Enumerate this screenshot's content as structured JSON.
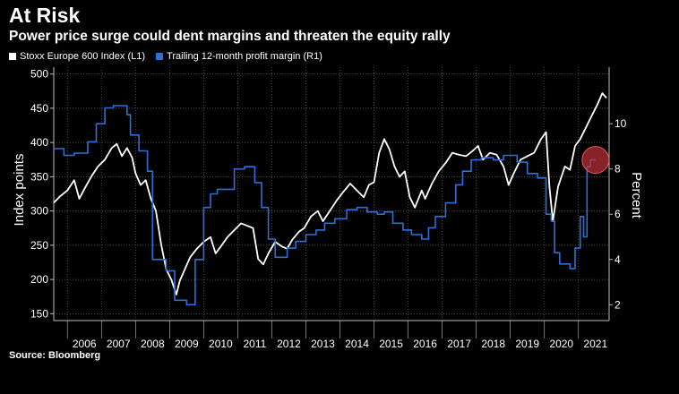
{
  "header": {
    "title": "At Risk",
    "subtitle": "Power price surge could dent margins and threaten the equity rally"
  },
  "footer": {
    "source": "Source: Bloomberg"
  },
  "colors": {
    "index_line": "#ffffff",
    "margin_line": "#2f6fd8",
    "highlight": "#c0303a",
    "grid": "#666666"
  },
  "chart_data": {
    "type": "line",
    "title": "At Risk",
    "subtitle": "Power price surge could dent margins and threaten the equity rally",
    "x_tick_labels": [
      "2006",
      "2007",
      "2008",
      "2009",
      "2010",
      "2011",
      "2012",
      "2013",
      "2014",
      "2015",
      "2016",
      "2017",
      "2018",
      "2019",
      "2020",
      "2021"
    ],
    "x_range": [
      2005.6,
      2021.9
    ],
    "left_axis": {
      "label": "Index points",
      "range": [
        140,
        510
      ],
      "ticks": [
        150,
        200,
        250,
        300,
        350,
        400,
        450,
        500
      ]
    },
    "right_axis": {
      "label": "Percent",
      "range": [
        1.3,
        12.5
      ],
      "ticks": [
        2,
        4,
        6,
        8,
        10
      ]
    },
    "grid": true,
    "legend_position": "top-left",
    "series": [
      {
        "name": "Stoxx Europe 600 Index (L1)",
        "axis": "left",
        "points": [
          [
            2005.6,
            312
          ],
          [
            2005.8,
            322
          ],
          [
            2006.0,
            330
          ],
          [
            2006.2,
            345
          ],
          [
            2006.35,
            318
          ],
          [
            2006.5,
            332
          ],
          [
            2006.7,
            350
          ],
          [
            2006.9,
            365
          ],
          [
            2007.1,
            375
          ],
          [
            2007.3,
            392
          ],
          [
            2007.45,
            398
          ],
          [
            2007.6,
            380
          ],
          [
            2007.75,
            392
          ],
          [
            2007.9,
            378
          ],
          [
            2008.0,
            355
          ],
          [
            2008.15,
            338
          ],
          [
            2008.3,
            345
          ],
          [
            2008.45,
            318
          ],
          [
            2008.6,
            300
          ],
          [
            2008.75,
            252
          ],
          [
            2008.9,
            215
          ],
          [
            2009.05,
            200
          ],
          [
            2009.2,
            178
          ],
          [
            2009.3,
            198
          ],
          [
            2009.45,
            215
          ],
          [
            2009.6,
            232
          ],
          [
            2009.8,
            245
          ],
          [
            2010.0,
            255
          ],
          [
            2010.2,
            262
          ],
          [
            2010.35,
            238
          ],
          [
            2010.5,
            248
          ],
          [
            2010.7,
            262
          ],
          [
            2010.9,
            272
          ],
          [
            2011.1,
            282
          ],
          [
            2011.3,
            278
          ],
          [
            2011.45,
            275
          ],
          [
            2011.6,
            230
          ],
          [
            2011.75,
            222
          ],
          [
            2011.9,
            238
          ],
          [
            2012.1,
            255
          ],
          [
            2012.3,
            248
          ],
          [
            2012.45,
            245
          ],
          [
            2012.6,
            258
          ],
          [
            2012.8,
            270
          ],
          [
            2012.95,
            275
          ],
          [
            2013.15,
            292
          ],
          [
            2013.35,
            300
          ],
          [
            2013.5,
            285
          ],
          [
            2013.7,
            300
          ],
          [
            2013.9,
            315
          ],
          [
            2014.1,
            328
          ],
          [
            2014.3,
            340
          ],
          [
            2014.5,
            330
          ],
          [
            2014.7,
            320
          ],
          [
            2014.85,
            338
          ],
          [
            2015.0,
            342
          ],
          [
            2015.15,
            385
          ],
          [
            2015.3,
            405
          ],
          [
            2015.45,
            390
          ],
          [
            2015.6,
            365
          ],
          [
            2015.75,
            350
          ],
          [
            2015.9,
            358
          ],
          [
            2016.05,
            320
          ],
          [
            2016.2,
            305
          ],
          [
            2016.4,
            330
          ],
          [
            2016.5,
            318
          ],
          [
            2016.7,
            340
          ],
          [
            2016.9,
            358
          ],
          [
            2017.1,
            370
          ],
          [
            2017.3,
            385
          ],
          [
            2017.5,
            382
          ],
          [
            2017.7,
            380
          ],
          [
            2017.9,
            388
          ],
          [
            2018.05,
            395
          ],
          [
            2018.2,
            375
          ],
          [
            2018.4,
            385
          ],
          [
            2018.6,
            382
          ],
          [
            2018.8,
            365
          ],
          [
            2018.95,
            338
          ],
          [
            2019.1,
            355
          ],
          [
            2019.3,
            375
          ],
          [
            2019.5,
            380
          ],
          [
            2019.7,
            385
          ],
          [
            2019.9,
            405
          ],
          [
            2020.05,
            415
          ],
          [
            2020.15,
            335
          ],
          [
            2020.25,
            285
          ],
          [
            2020.4,
            335
          ],
          [
            2020.6,
            365
          ],
          [
            2020.75,
            360
          ],
          [
            2020.9,
            395
          ],
          [
            2021.05,
            405
          ],
          [
            2021.2,
            420
          ],
          [
            2021.4,
            440
          ],
          [
            2021.55,
            455
          ],
          [
            2021.7,
            472
          ],
          [
            2021.82,
            465
          ]
        ]
      },
      {
        "name": "Trailing 12-month profit margin (R1)",
        "axis": "right",
        "points": [
          [
            2005.6,
            8.9
          ],
          [
            2005.9,
            8.9
          ],
          [
            2005.9,
            8.6
          ],
          [
            2006.2,
            8.6
          ],
          [
            2006.2,
            8.7
          ],
          [
            2006.6,
            8.7
          ],
          [
            2006.6,
            9.2
          ],
          [
            2006.85,
            9.2
          ],
          [
            2006.85,
            10.0
          ],
          [
            2007.1,
            10.0
          ],
          [
            2007.1,
            10.7
          ],
          [
            2007.35,
            10.7
          ],
          [
            2007.35,
            10.8
          ],
          [
            2007.75,
            10.8
          ],
          [
            2007.75,
            10.4
          ],
          [
            2007.85,
            10.4
          ],
          [
            2007.85,
            9.5
          ],
          [
            2008.1,
            9.5
          ],
          [
            2008.1,
            8.8
          ],
          [
            2008.35,
            8.8
          ],
          [
            2008.35,
            7.9
          ],
          [
            2008.5,
            7.9
          ],
          [
            2008.5,
            4.0
          ],
          [
            2008.9,
            4.0
          ],
          [
            2008.9,
            3.5
          ],
          [
            2009.15,
            3.5
          ],
          [
            2009.15,
            2.2
          ],
          [
            2009.5,
            2.2
          ],
          [
            2009.5,
            2.0
          ],
          [
            2009.75,
            2.0
          ],
          [
            2009.75,
            4.0
          ],
          [
            2010.0,
            4.0
          ],
          [
            2010.0,
            6.3
          ],
          [
            2010.2,
            6.3
          ],
          [
            2010.2,
            6.9
          ],
          [
            2010.4,
            6.9
          ],
          [
            2010.4,
            7.1
          ],
          [
            2010.9,
            7.1
          ],
          [
            2010.9,
            8.0
          ],
          [
            2011.2,
            8.0
          ],
          [
            2011.2,
            8.1
          ],
          [
            2011.5,
            8.1
          ],
          [
            2011.5,
            7.4
          ],
          [
            2011.7,
            7.4
          ],
          [
            2011.7,
            6.3
          ],
          [
            2011.9,
            6.3
          ],
          [
            2011.9,
            4.9
          ],
          [
            2012.1,
            4.9
          ],
          [
            2012.1,
            4.1
          ],
          [
            2012.45,
            4.1
          ],
          [
            2012.45,
            4.5
          ],
          [
            2012.7,
            4.5
          ],
          [
            2012.7,
            4.8
          ],
          [
            2013.0,
            4.8
          ],
          [
            2013.0,
            5.1
          ],
          [
            2013.3,
            5.1
          ],
          [
            2013.3,
            5.3
          ],
          [
            2013.55,
            5.3
          ],
          [
            2013.55,
            5.6
          ],
          [
            2013.85,
            5.6
          ],
          [
            2013.85,
            5.8
          ],
          [
            2014.2,
            5.8
          ],
          [
            2014.2,
            6.2
          ],
          [
            2014.5,
            6.2
          ],
          [
            2014.5,
            6.3
          ],
          [
            2014.8,
            6.3
          ],
          [
            2014.8,
            6.1
          ],
          [
            2015.1,
            6.1
          ],
          [
            2015.1,
            6.0
          ],
          [
            2015.3,
            6.0
          ],
          [
            2015.3,
            6.1
          ],
          [
            2015.55,
            6.1
          ],
          [
            2015.55,
            5.6
          ],
          [
            2015.85,
            5.6
          ],
          [
            2015.85,
            5.3
          ],
          [
            2016.1,
            5.3
          ],
          [
            2016.1,
            5.1
          ],
          [
            2016.4,
            5.1
          ],
          [
            2016.4,
            4.9
          ],
          [
            2016.6,
            4.9
          ],
          [
            2016.6,
            5.4
          ],
          [
            2016.8,
            5.4
          ],
          [
            2016.8,
            5.9
          ],
          [
            2017.1,
            5.9
          ],
          [
            2017.1,
            6.5
          ],
          [
            2017.4,
            6.5
          ],
          [
            2017.4,
            7.3
          ],
          [
            2017.6,
            7.3
          ],
          [
            2017.6,
            7.9
          ],
          [
            2017.85,
            7.9
          ],
          [
            2017.85,
            8.4
          ],
          [
            2018.15,
            8.4
          ],
          [
            2018.15,
            8.5
          ],
          [
            2018.5,
            8.5
          ],
          [
            2018.5,
            8.4
          ],
          [
            2018.8,
            8.4
          ],
          [
            2018.8,
            8.6
          ],
          [
            2019.2,
            8.6
          ],
          [
            2019.2,
            8.3
          ],
          [
            2019.5,
            8.3
          ],
          [
            2019.5,
            7.8
          ],
          [
            2019.8,
            7.8
          ],
          [
            2019.8,
            7.6
          ],
          [
            2020.05,
            7.6
          ],
          [
            2020.05,
            6.0
          ],
          [
            2020.2,
            6.0
          ],
          [
            2020.2,
            5.7
          ],
          [
            2020.3,
            5.7
          ],
          [
            2020.3,
            4.3
          ],
          [
            2020.45,
            4.3
          ],
          [
            2020.45,
            3.8
          ],
          [
            2020.75,
            3.8
          ],
          [
            2020.75,
            3.6
          ],
          [
            2020.9,
            3.6
          ],
          [
            2020.9,
            4.5
          ],
          [
            2021.05,
            4.5
          ],
          [
            2021.05,
            5.9
          ],
          [
            2021.15,
            5.9
          ],
          [
            2021.15,
            5.0
          ],
          [
            2021.25,
            5.0
          ],
          [
            2021.25,
            8.1
          ],
          [
            2021.35,
            8.1
          ],
          [
            2021.35,
            8.4
          ],
          [
            2021.5,
            8.4
          ]
        ]
      }
    ],
    "highlight": {
      "x": 2021.5,
      "y_right": 8.4
    }
  }
}
